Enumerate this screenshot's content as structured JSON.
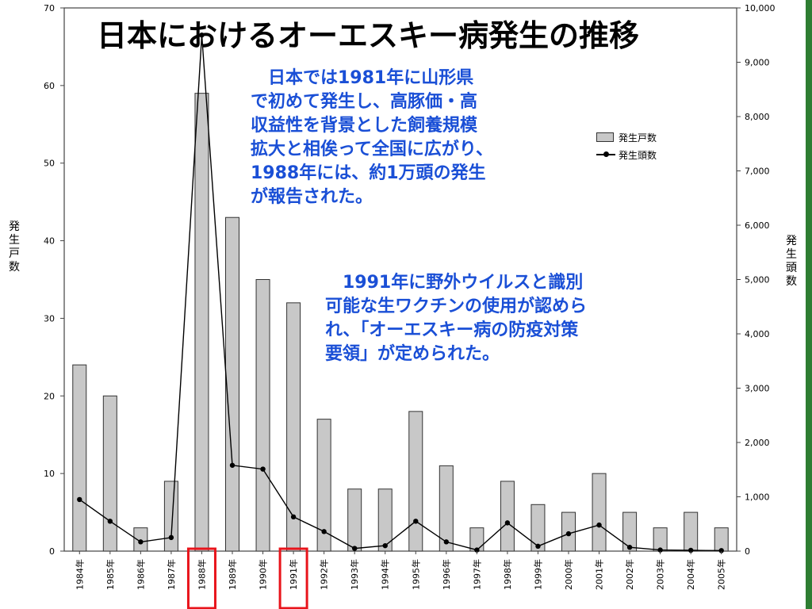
{
  "title": "日本におけるオーエスキー病発生の推移",
  "notes": {
    "note1": [
      "　日本では1981年に山形県",
      "で初めて発生し、高豚価・高",
      "収益性を背景とした飼養規模",
      "拡大と相俟って全国に広がり、",
      "1988年には、約1万頭の発生",
      "が報告された。"
    ],
    "note2": [
      "　1991年に野外ウイルスと識別",
      "可能な生ワクチンの使用が認めら",
      "れ、「オーエスキー病の防疫対策",
      "要領」が定められた。"
    ]
  },
  "axis_titles": {
    "left": [
      "発",
      "生",
      "戸",
      "数"
    ],
    "right": [
      "発",
      "生",
      "頭",
      "数"
    ]
  },
  "legend": {
    "bar_label": "発生戸数",
    "line_label": "発生頭数"
  },
  "highlighted_years": [
    "1988年",
    "1991年"
  ],
  "colors": {
    "bar_fill": "#c8c8c8",
    "bar_stroke": "#333333",
    "line": "#000000",
    "note_text": "#1a4fd6",
    "highlight": "#e8141b",
    "right_edge": "#2e7d32"
  },
  "chart_data": {
    "type": "bar",
    "categories": [
      "1984年",
      "1985年",
      "1986年",
      "1987年",
      "1988年",
      "1989年",
      "1990年",
      "1991年",
      "1992年",
      "1993年",
      "1994年",
      "1995年",
      "1996年",
      "1997年",
      "1998年",
      "1999年",
      "2000年",
      "2001年",
      "2002年",
      "2003年",
      "2004年",
      "2005年"
    ],
    "series": [
      {
        "name": "発生戸数",
        "type": "bar",
        "axis": "left",
        "values": [
          24,
          20,
          3,
          9,
          59,
          43,
          35,
          32,
          17,
          8,
          8,
          18,
          11,
          3,
          9,
          6,
          5,
          10,
          5,
          3,
          5,
          3
        ]
      },
      {
        "name": "発生頭数",
        "type": "line",
        "axis": "right",
        "values": [
          950,
          550,
          170,
          250,
          9500,
          1580,
          1510,
          630,
          360,
          50,
          100,
          550,
          170,
          20,
          520,
          90,
          320,
          480,
          70,
          20,
          15,
          10
        ]
      }
    ],
    "y_left": {
      "lim": [
        0,
        70
      ],
      "ticks": [
        0,
        10,
        20,
        30,
        40,
        50,
        60,
        70
      ],
      "tick_labels": [
        "0",
        "10",
        "20",
        "30",
        "40",
        "50",
        "60",
        "70"
      ]
    },
    "y_right": {
      "lim": [
        0,
        10000
      ],
      "ticks": [
        0,
        1000,
        2000,
        3000,
        4000,
        5000,
        6000,
        7000,
        8000,
        9000,
        10000
      ],
      "tick_labels": [
        "0",
        "1,000",
        "2,000",
        "3,000",
        "4,000",
        "5,000",
        "6,000",
        "7,000",
        "8,000",
        "9,000",
        "10,000"
      ]
    },
    "legend_position": "right",
    "grid": false
  }
}
